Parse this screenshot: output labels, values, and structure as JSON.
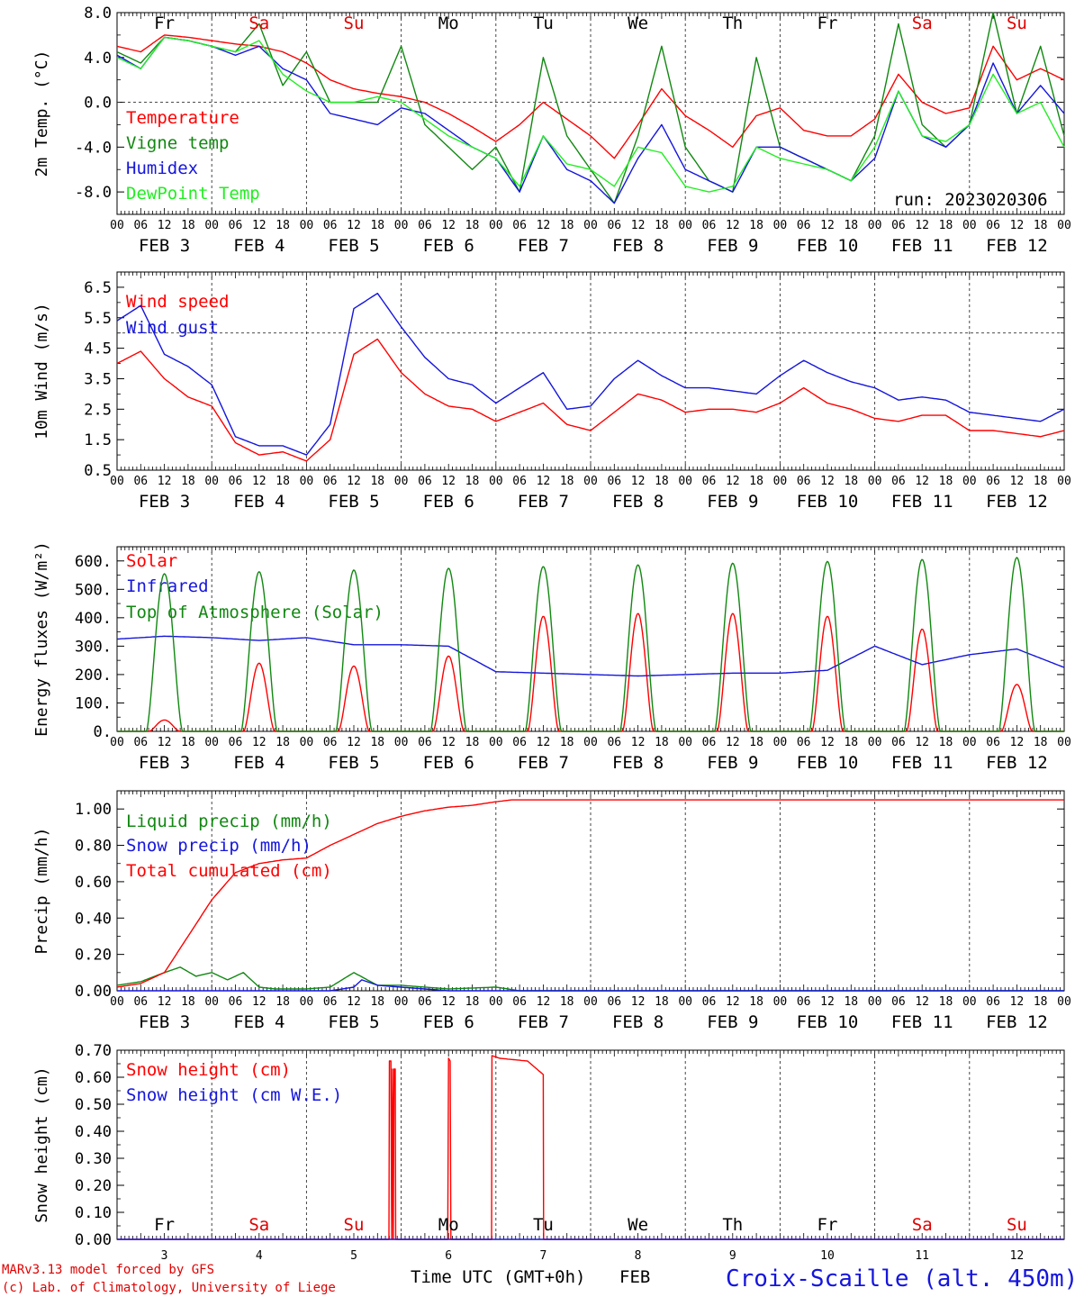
{
  "days": [
    "Fr",
    "Sa",
    "Su",
    "Mo",
    "Tu",
    "We",
    "Th",
    "Fr",
    "Sa",
    "Su"
  ],
  "day_colors": [
    "#000000",
    "#e00000",
    "#e00000",
    "#000000",
    "#000000",
    "#000000",
    "#000000",
    "#000000",
    "#e00000",
    "#e00000"
  ],
  "hour_ticks": [
    "00",
    "06",
    "12",
    "18"
  ],
  "date_labels": [
    "FEB  3",
    "FEB  4",
    "FEB  5",
    "FEB  6",
    "FEB  7",
    "FEB  8",
    "FEB  9",
    "FEB 10",
    "FEB 11",
    "FEB 12"
  ],
  "day_numbers": [
    "3",
    "4",
    "5",
    "6",
    "7",
    "8",
    "9",
    "10",
    "11",
    "12"
  ],
  "footer": {
    "model": "MARv3.13 model forced by GFS",
    "copyright": "(c) Lab. of Climatology, University of Liege",
    "xlabel": "Time UTC (GMT+0h)",
    "month": "FEB",
    "station": "Croix-Scaille (alt. 450m)"
  },
  "run_label": "run: 2023020306",
  "colors": {
    "red": "#ff0000",
    "green": "#118811",
    "blue": "#1515dd",
    "lightgreen": "#22ee22",
    "grid": "#333333"
  },
  "chart_data": [
    {
      "type": "line",
      "ylabel": "2m Temp. (°C)",
      "ylim": [
        -10,
        8
      ],
      "yticks": [
        8,
        4,
        0,
        -4,
        -8
      ],
      "ytick_labels": [
        "8.0",
        "4.0",
        "0.0",
        "-4.0",
        "-8.0"
      ],
      "hline": 0,
      "x_unit": "hours since FEB 3 00 UTC",
      "series": [
        {
          "name": "Temperature",
          "color": "#ff0000",
          "x": [
            0,
            6,
            12,
            18,
            24,
            30,
            36,
            42,
            48,
            54,
            60,
            66,
            72,
            78,
            84,
            90,
            96,
            102,
            108,
            114,
            120,
            126,
            132,
            138,
            144,
            150,
            156,
            162,
            168,
            174,
            180,
            186,
            192,
            198,
            204,
            210,
            216,
            222,
            228,
            234,
            240
          ],
          "values": [
            5,
            4.5,
            6,
            5.8,
            5.5,
            5.2,
            5,
            4.5,
            3.5,
            2,
            1.2,
            0.8,
            0.5,
            0,
            -1,
            -2.2,
            -3.5,
            -2,
            0,
            -1.5,
            -3,
            -5,
            -2,
            1.2,
            -1.2,
            -2.5,
            -4,
            -1.2,
            -0.5,
            -2.5,
            -3,
            -3,
            -1.5,
            2.5,
            0,
            -1,
            -0.5,
            5,
            2,
            3,
            2
          ]
        },
        {
          "name": "Vigne temp",
          "color": "#118811",
          "x": [
            0,
            6,
            12,
            18,
            24,
            30,
            36,
            42,
            48,
            54,
            60,
            66,
            72,
            78,
            84,
            90,
            96,
            102,
            108,
            114,
            120,
            126,
            132,
            138,
            144,
            150,
            156,
            162,
            168,
            174,
            180,
            186,
            192,
            198,
            204,
            210,
            216,
            222,
            228,
            234,
            240
          ],
          "values": [
            4.5,
            3.5,
            5.8,
            5.5,
            5,
            4.5,
            7,
            1.5,
            4.5,
            0,
            0,
            0,
            5,
            -2,
            -4,
            -6,
            -4,
            -8,
            4,
            -3,
            -6,
            -9,
            -3,
            5,
            -4,
            -7,
            -8,
            4,
            -4,
            -5,
            -6,
            -7,
            -3,
            7,
            -2,
            -4,
            -2,
            8,
            -1,
            5,
            -3
          ]
        },
        {
          "name": "Humidex",
          "color": "#1515dd",
          "x": [
            0,
            6,
            12,
            18,
            24,
            30,
            36,
            42,
            48,
            54,
            60,
            66,
            72,
            78,
            84,
            90,
            96,
            102,
            108,
            114,
            120,
            126,
            132,
            138,
            144,
            150,
            156,
            162,
            168,
            174,
            180,
            186,
            192,
            198,
            204,
            210,
            216,
            222,
            228,
            234,
            240
          ],
          "values": [
            4.2,
            3,
            5.8,
            5.5,
            5,
            4.2,
            5,
            3,
            2,
            -1,
            -1.5,
            -2,
            -0.5,
            -1,
            -2.5,
            -4,
            -5,
            -8,
            -3,
            -6,
            -7,
            -9,
            -5,
            -2,
            -6,
            -7,
            -8,
            -4,
            -4,
            -5,
            -6,
            -7,
            -5,
            1,
            -3,
            -4,
            -2,
            3.5,
            -1,
            1.5,
            -1
          ]
        },
        {
          "name": "DewPoint Temp",
          "color": "#22ee22",
          "x": [
            0,
            6,
            12,
            18,
            24,
            30,
            36,
            42,
            48,
            54,
            60,
            66,
            72,
            78,
            84,
            90,
            96,
            102,
            108,
            114,
            120,
            126,
            132,
            138,
            144,
            150,
            156,
            162,
            168,
            174,
            180,
            186,
            192,
            198,
            204,
            210,
            216,
            222,
            228,
            234,
            240
          ],
          "values": [
            4,
            3,
            5.8,
            5.5,
            5,
            4.5,
            5.5,
            2.5,
            1,
            0,
            0,
            0.5,
            0,
            -1.5,
            -3,
            -4,
            -5,
            -7.5,
            -3,
            -5.5,
            -6,
            -7.5,
            -4,
            -4.5,
            -7.5,
            -8,
            -7.5,
            -4,
            -5,
            -5.5,
            -6,
            -7,
            -4,
            1,
            -3,
            -3.5,
            -2,
            2.5,
            -1,
            0,
            -4
          ]
        }
      ]
    },
    {
      "type": "line",
      "ylabel": "10m Wind (m/s)",
      "ylim": [
        0.5,
        7
      ],
      "yticks": [
        6.5,
        5.5,
        4.5,
        3.5,
        2.5,
        1.5,
        0.5
      ],
      "ytick_labels": [
        "6.5",
        "5.5",
        "4.5",
        "3.5",
        "2.5",
        "1.5",
        "0.5"
      ],
      "hline": 5,
      "x_unit": "hours since FEB 3 00 UTC",
      "series": [
        {
          "name": "Wind speed",
          "color": "#ff0000",
          "x": [
            0,
            6,
            12,
            18,
            24,
            30,
            36,
            42,
            48,
            54,
            60,
            66,
            72,
            78,
            84,
            90,
            96,
            102,
            108,
            114,
            120,
            126,
            132,
            138,
            144,
            150,
            156,
            162,
            168,
            174,
            180,
            186,
            192,
            198,
            204,
            210,
            216,
            222,
            228,
            234,
            240
          ],
          "values": [
            4,
            4.4,
            3.5,
            2.9,
            2.6,
            1.4,
            1,
            1.1,
            0.8,
            1.5,
            4.3,
            4.8,
            3.7,
            3,
            2.6,
            2.5,
            2.1,
            2.4,
            2.7,
            2,
            1.8,
            2.4,
            3,
            2.8,
            2.4,
            2.5,
            2.5,
            2.4,
            2.7,
            3.2,
            2.7,
            2.5,
            2.2,
            2.1,
            2.3,
            2.3,
            1.8,
            1.8,
            1.7,
            1.6,
            1.8
          ]
        },
        {
          "name": "Wind gust",
          "color": "#1515dd",
          "x": [
            0,
            6,
            12,
            18,
            24,
            30,
            36,
            42,
            48,
            54,
            60,
            66,
            72,
            78,
            84,
            90,
            96,
            102,
            108,
            114,
            120,
            126,
            132,
            138,
            144,
            150,
            156,
            162,
            168,
            174,
            180,
            186,
            192,
            198,
            204,
            210,
            216,
            222,
            228,
            234,
            240
          ],
          "values": [
            5.4,
            5.9,
            4.3,
            3.9,
            3.3,
            1.6,
            1.3,
            1.3,
            1,
            2,
            5.8,
            6.3,
            5.2,
            4.2,
            3.5,
            3.3,
            2.7,
            3.2,
            3.7,
            2.5,
            2.6,
            3.5,
            4.1,
            3.6,
            3.2,
            3.2,
            3.1,
            3,
            3.6,
            4.1,
            3.7,
            3.4,
            3.2,
            2.8,
            2.9,
            2.8,
            2.4,
            2.3,
            2.2,
            2.1,
            2.5
          ]
        }
      ]
    },
    {
      "type": "line",
      "ylabel": "Energy fluxes (W/m²)",
      "ylim": [
        0,
        650
      ],
      "yticks": [
        600,
        500,
        400,
        300,
        200,
        100,
        0
      ],
      "ytick_labels": [
        "600.",
        "500.",
        "400.",
        "300.",
        "200.",
        "100.",
        "0."
      ],
      "x_unit": "hours since FEB 3 00 UTC",
      "solar_noon_hour": 12,
      "series": [
        {
          "name": "Solar",
          "color": "#ff0000",
          "daily_peaks": [
            40,
            240,
            230,
            265,
            405,
            415,
            415,
            405,
            360,
            165
          ]
        },
        {
          "name": "Infrared",
          "color": "#1515dd",
          "x": [
            0,
            12,
            24,
            36,
            48,
            60,
            72,
            84,
            96,
            108,
            120,
            132,
            144,
            156,
            168,
            180,
            192,
            204,
            216,
            228,
            240
          ],
          "values": [
            325,
            335,
            330,
            320,
            330,
            305,
            305,
            300,
            210,
            205,
            200,
            195,
            200,
            205,
            205,
            215,
            300,
            235,
            270,
            290,
            225
          ]
        },
        {
          "name": "Top of Atmosphere (Solar)",
          "color": "#118811",
          "daily_peaks": [
            555,
            562,
            568,
            574,
            580,
            586,
            592,
            598,
            605,
            612
          ]
        }
      ]
    },
    {
      "type": "line",
      "ylabel": "Precip (mm/h)",
      "ylim": [
        0,
        1.1
      ],
      "yticks": [
        1.0,
        0.8,
        0.6,
        0.4,
        0.2,
        0.0
      ],
      "ytick_labels": [
        "1.00",
        "0.80",
        "0.60",
        "0.40",
        "0.20",
        "0.00"
      ],
      "x_unit": "hours since FEB 3 00 UTC",
      "series": [
        {
          "name": "Liquid precip (mm/h)",
          "color": "#118811",
          "x": [
            0,
            6,
            12,
            16,
            20,
            24,
            28,
            32,
            36,
            40,
            48,
            54,
            60,
            66,
            72,
            78,
            84,
            96,
            102,
            240
          ],
          "values": [
            0.03,
            0.05,
            0.1,
            0.13,
            0.08,
            0.1,
            0.06,
            0.1,
            0.02,
            0.01,
            0.01,
            0.02,
            0.1,
            0.03,
            0.03,
            0.02,
            0.01,
            0.02,
            0,
            0
          ]
        },
        {
          "name": "Snow precip (mm/h)",
          "color": "#1515dd",
          "x": [
            0,
            54,
            60,
            62,
            66,
            72,
            78,
            84,
            96,
            240
          ],
          "values": [
            0,
            0,
            0.02,
            0.06,
            0.03,
            0.02,
            0.01,
            0,
            0,
            0
          ]
        },
        {
          "name": "Total cumulated (cm)",
          "color": "#ff0000",
          "x": [
            0,
            6,
            12,
            18,
            24,
            30,
            36,
            42,
            48,
            54,
            60,
            66,
            72,
            78,
            84,
            90,
            96,
            100,
            240
          ],
          "values": [
            0.02,
            0.04,
            0.1,
            0.3,
            0.5,
            0.65,
            0.7,
            0.72,
            0.73,
            0.8,
            0.86,
            0.92,
            0.96,
            0.99,
            1.01,
            1.02,
            1.04,
            1.05,
            1.05
          ]
        }
      ]
    },
    {
      "type": "line",
      "ylabel": "Snow height (cm)",
      "ylim": [
        0,
        0.7
      ],
      "yticks": [
        0.7,
        0.6,
        0.5,
        0.4,
        0.3,
        0.2,
        0.1,
        0.0
      ],
      "ytick_labels": [
        "0.70",
        "0.60",
        "0.50",
        "0.40",
        "0.30",
        "0.20",
        "0.10",
        "0.00"
      ],
      "x_unit": "hours since FEB 3 00 UTC",
      "series": [
        {
          "name": "Snow height (cm)",
          "color": "#ff0000",
          "x": [
            0,
            68.9,
            69,
            69.4,
            69.6,
            69.8,
            70,
            70.2,
            70.5,
            70.6,
            83.8,
            84,
            84.4,
            84.6,
            84.8,
            94.9,
            95,
            97,
            104,
            108,
            108.1,
            240
          ],
          "values": [
            0,
            0,
            0.66,
            0.66,
            0,
            0.63,
            0,
            0.63,
            0.63,
            0,
            0,
            0.67,
            0.66,
            0,
            0,
            0,
            0.68,
            0.67,
            0.66,
            0.61,
            0,
            0
          ]
        },
        {
          "name": "Snow height (cm W.E.)",
          "color": "#1515dd",
          "x": [
            0,
            240
          ],
          "values": [
            0,
            0
          ]
        }
      ]
    }
  ]
}
